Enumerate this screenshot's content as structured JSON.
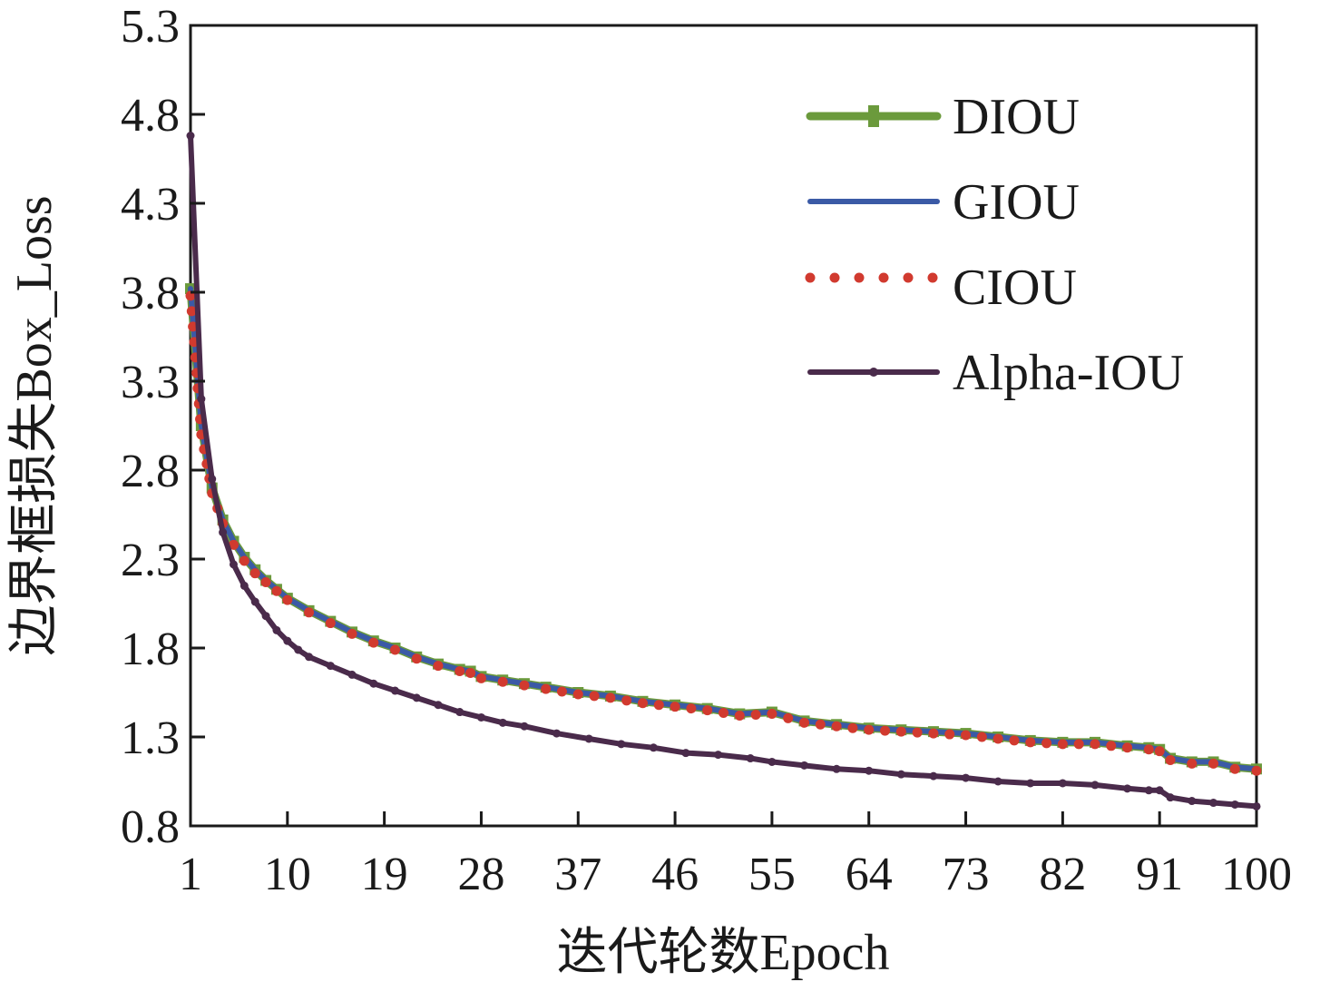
{
  "chart_data": {
    "type": "line",
    "title": "",
    "xlabel": "迭代轮数Epoch",
    "ylabel": "边界框损失Box_Loss",
    "xlim": [
      1,
      100
    ],
    "ylim": [
      0.8,
      5.3
    ],
    "xticks": [
      1,
      10,
      19,
      28,
      37,
      46,
      55,
      64,
      73,
      82,
      91,
      100
    ],
    "yticks": [
      0.8,
      1.3,
      1.8,
      2.3,
      2.8,
      3.3,
      3.8,
      4.3,
      4.8,
      5.3
    ],
    "xtick_labels": [
      "1",
      "10",
      "19",
      "28",
      "37",
      "46",
      "55",
      "64",
      "73",
      "82",
      "91",
      "100"
    ],
    "ytick_labels": [
      "0.8",
      "1.3",
      "1.8",
      "2.3",
      "2.8",
      "3.3",
      "3.8",
      "4.3",
      "4.8",
      "5.3"
    ],
    "legend_position": "top-right",
    "grid": false,
    "series": [
      {
        "name": "DIOU",
        "color": "#6b9a3c",
        "style": "solid-plus-markers",
        "points": [
          [
            1,
            3.82
          ],
          [
            2,
            3.05
          ],
          [
            3,
            2.7
          ],
          [
            4,
            2.52
          ],
          [
            5,
            2.4
          ],
          [
            6,
            2.31
          ],
          [
            7,
            2.24
          ],
          [
            8,
            2.18
          ],
          [
            9,
            2.13
          ],
          [
            10,
            2.08
          ],
          [
            12,
            2.01
          ],
          [
            14,
            1.95
          ],
          [
            16,
            1.89
          ],
          [
            18,
            1.84
          ],
          [
            20,
            1.8
          ],
          [
            22,
            1.75
          ],
          [
            24,
            1.71
          ],
          [
            26,
            1.68
          ],
          [
            27,
            1.67
          ],
          [
            28,
            1.64
          ],
          [
            30,
            1.62
          ],
          [
            32,
            1.6
          ],
          [
            34,
            1.58
          ],
          [
            37,
            1.55
          ],
          [
            40,
            1.53
          ],
          [
            43,
            1.5
          ],
          [
            46,
            1.48
          ],
          [
            49,
            1.46
          ],
          [
            52,
            1.43
          ],
          [
            55,
            1.44
          ],
          [
            58,
            1.39
          ],
          [
            61,
            1.37
          ],
          [
            64,
            1.35
          ],
          [
            67,
            1.34
          ],
          [
            70,
            1.33
          ],
          [
            73,
            1.32
          ],
          [
            76,
            1.3
          ],
          [
            79,
            1.28
          ],
          [
            82,
            1.27
          ],
          [
            85,
            1.27
          ],
          [
            88,
            1.25
          ],
          [
            90,
            1.24
          ],
          [
            91,
            1.23
          ],
          [
            92,
            1.18
          ],
          [
            94,
            1.16
          ],
          [
            96,
            1.16
          ],
          [
            98,
            1.13
          ],
          [
            100,
            1.12
          ]
        ]
      },
      {
        "name": "GIOU",
        "color": "#3b5aa6",
        "style": "solid",
        "points": [
          [
            1,
            3.82
          ],
          [
            2,
            3.05
          ],
          [
            3,
            2.7
          ],
          [
            4,
            2.52
          ],
          [
            5,
            2.4
          ],
          [
            6,
            2.31
          ],
          [
            7,
            2.24
          ],
          [
            8,
            2.18
          ],
          [
            9,
            2.13
          ],
          [
            10,
            2.08
          ],
          [
            12,
            2.01
          ],
          [
            14,
            1.95
          ],
          [
            16,
            1.89
          ],
          [
            18,
            1.84
          ],
          [
            20,
            1.8
          ],
          [
            22,
            1.75
          ],
          [
            24,
            1.71
          ],
          [
            26,
            1.68
          ],
          [
            27,
            1.67
          ],
          [
            28,
            1.64
          ],
          [
            30,
            1.62
          ],
          [
            32,
            1.6
          ],
          [
            34,
            1.58
          ],
          [
            37,
            1.55
          ],
          [
            40,
            1.53
          ],
          [
            43,
            1.5
          ],
          [
            46,
            1.48
          ],
          [
            49,
            1.46
          ],
          [
            52,
            1.43
          ],
          [
            55,
            1.44
          ],
          [
            58,
            1.39
          ],
          [
            61,
            1.37
          ],
          [
            64,
            1.35
          ],
          [
            67,
            1.34
          ],
          [
            70,
            1.33
          ],
          [
            73,
            1.32
          ],
          [
            76,
            1.3
          ],
          [
            79,
            1.28
          ],
          [
            82,
            1.27
          ],
          [
            85,
            1.27
          ],
          [
            88,
            1.25
          ],
          [
            90,
            1.24
          ],
          [
            91,
            1.23
          ],
          [
            92,
            1.18
          ],
          [
            94,
            1.16
          ],
          [
            96,
            1.16
          ],
          [
            98,
            1.13
          ],
          [
            100,
            1.12
          ]
        ]
      },
      {
        "name": "CIOU",
        "color": "#d13a2f",
        "style": "dotted",
        "points": [
          [
            1,
            3.78
          ],
          [
            2,
            3.0
          ],
          [
            3,
            2.67
          ],
          [
            4,
            2.5
          ],
          [
            5,
            2.38
          ],
          [
            6,
            2.29
          ],
          [
            7,
            2.22
          ],
          [
            8,
            2.17
          ],
          [
            9,
            2.12
          ],
          [
            10,
            2.07
          ],
          [
            12,
            2.0
          ],
          [
            14,
            1.94
          ],
          [
            16,
            1.88
          ],
          [
            18,
            1.83
          ],
          [
            20,
            1.79
          ],
          [
            22,
            1.74
          ],
          [
            24,
            1.7
          ],
          [
            26,
            1.67
          ],
          [
            27,
            1.66
          ],
          [
            28,
            1.63
          ],
          [
            30,
            1.61
          ],
          [
            32,
            1.59
          ],
          [
            34,
            1.57
          ],
          [
            37,
            1.54
          ],
          [
            40,
            1.52
          ],
          [
            43,
            1.49
          ],
          [
            46,
            1.47
          ],
          [
            49,
            1.45
          ],
          [
            52,
            1.42
          ],
          [
            55,
            1.43
          ],
          [
            58,
            1.38
          ],
          [
            61,
            1.36
          ],
          [
            64,
            1.34
          ],
          [
            67,
            1.33
          ],
          [
            70,
            1.32
          ],
          [
            73,
            1.31
          ],
          [
            76,
            1.29
          ],
          [
            79,
            1.27
          ],
          [
            82,
            1.26
          ],
          [
            85,
            1.26
          ],
          [
            88,
            1.24
          ],
          [
            90,
            1.23
          ],
          [
            91,
            1.22
          ],
          [
            92,
            1.17
          ],
          [
            94,
            1.15
          ],
          [
            96,
            1.15
          ],
          [
            98,
            1.12
          ],
          [
            100,
            1.11
          ]
        ]
      },
      {
        "name": "Alpha-IOU",
        "color": "#4a2b4b",
        "style": "solid-dot-markers",
        "points": [
          [
            1,
            4.68
          ],
          [
            2,
            3.2
          ],
          [
            3,
            2.75
          ],
          [
            4,
            2.45
          ],
          [
            5,
            2.27
          ],
          [
            6,
            2.15
          ],
          [
            7,
            2.06
          ],
          [
            8,
            1.98
          ],
          [
            9,
            1.9
          ],
          [
            10,
            1.84
          ],
          [
            11,
            1.79
          ],
          [
            12,
            1.75
          ],
          [
            14,
            1.7
          ],
          [
            16,
            1.65
          ],
          [
            18,
            1.6
          ],
          [
            20,
            1.56
          ],
          [
            22,
            1.52
          ],
          [
            24,
            1.48
          ],
          [
            26,
            1.44
          ],
          [
            28,
            1.41
          ],
          [
            30,
            1.38
          ],
          [
            32,
            1.36
          ],
          [
            35,
            1.32
          ],
          [
            38,
            1.29
          ],
          [
            41,
            1.26
          ],
          [
            44,
            1.24
          ],
          [
            47,
            1.21
          ],
          [
            50,
            1.2
          ],
          [
            53,
            1.18
          ],
          [
            55,
            1.16
          ],
          [
            58,
            1.14
          ],
          [
            61,
            1.12
          ],
          [
            64,
            1.11
          ],
          [
            67,
            1.09
          ],
          [
            70,
            1.08
          ],
          [
            73,
            1.07
          ],
          [
            76,
            1.05
          ],
          [
            79,
            1.04
          ],
          [
            82,
            1.04
          ],
          [
            85,
            1.03
          ],
          [
            88,
            1.01
          ],
          [
            90,
            1.0
          ],
          [
            91,
            1.0
          ],
          [
            92,
            0.96
          ],
          [
            94,
            0.94
          ],
          [
            96,
            0.93
          ],
          [
            98,
            0.92
          ],
          [
            100,
            0.91
          ]
        ]
      }
    ]
  }
}
